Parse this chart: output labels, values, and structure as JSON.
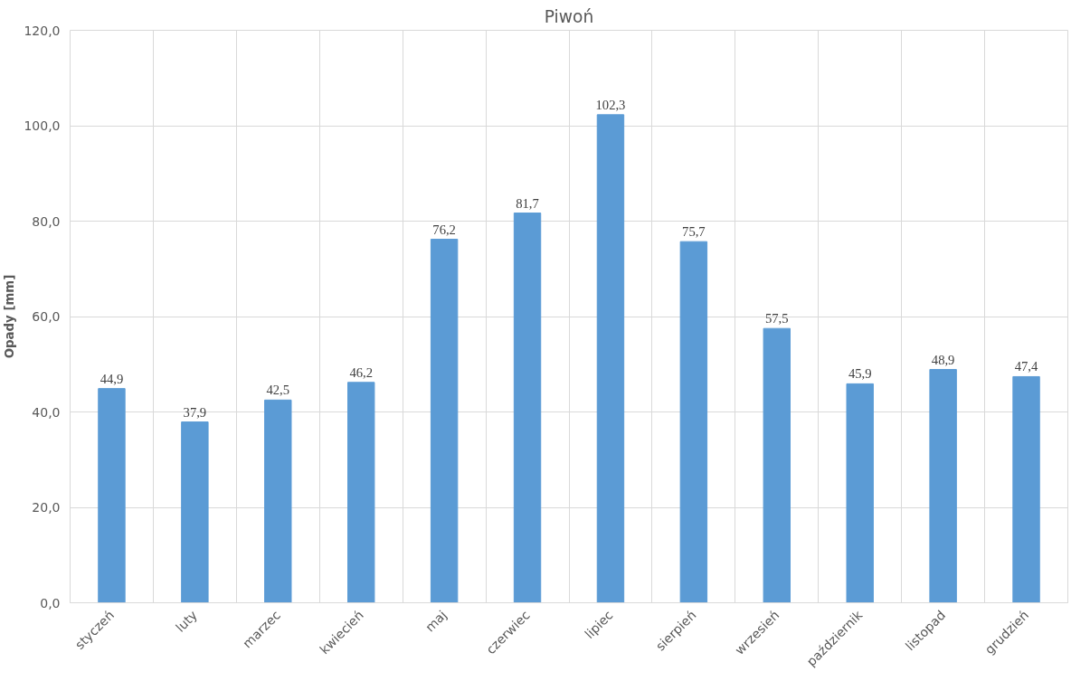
{
  "chart_data": {
    "type": "bar",
    "title": "Piwoń",
    "ylabel": "Opady [mm]",
    "categories": [
      "styczeń",
      "luty",
      "marzec",
      "kwiecień",
      "maj",
      "czerwiec",
      "lipiec",
      "sierpień",
      "wrzesień",
      "październik",
      "listopad",
      "grudzień"
    ],
    "values": [
      44.9,
      37.9,
      42.5,
      46.2,
      76.2,
      81.7,
      102.3,
      75.7,
      57.5,
      45.9,
      48.9,
      47.4
    ],
    "value_labels": [
      "44,9",
      "37,9",
      "42,5",
      "46,2",
      "76,2",
      "81,7",
      "102,3",
      "75,7",
      "57,5",
      "45,9",
      "48,9",
      "47,4"
    ],
    "color": "#5b9bd5",
    "ylim": [
      0,
      120
    ],
    "yticks": [
      {
        "value": 0,
        "label": "0,0"
      },
      {
        "value": 20,
        "label": "20,0"
      },
      {
        "value": 40,
        "label": "40,0"
      },
      {
        "value": 60,
        "label": "60,0"
      },
      {
        "value": 80,
        "label": "80,0"
      },
      {
        "value": 100,
        "label": "100,0"
      },
      {
        "value": 120,
        "label": "120,0"
      }
    ],
    "grid": true
  }
}
